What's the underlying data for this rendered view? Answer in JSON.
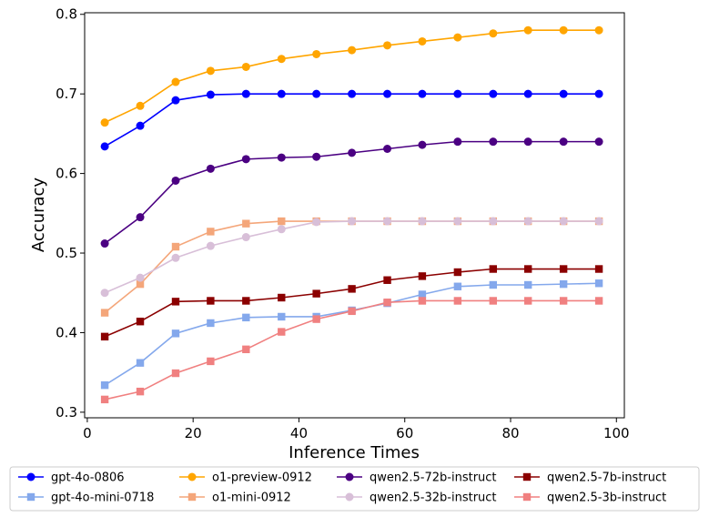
{
  "chart_data": {
    "type": "line",
    "title": "",
    "xlabel": "Inference Times",
    "ylabel": "Accuracy",
    "xlim": [
      -0.5,
      101.5
    ],
    "ylim": [
      0.293,
      0.802
    ],
    "xticks": [
      0,
      20,
      40,
      60,
      80,
      100
    ],
    "yticks": [
      0.3,
      0.4,
      0.5,
      0.6,
      0.7,
      0.8
    ],
    "grid": false,
    "legend_position": "bottom",
    "x": [
      3.3,
      10,
      16.7,
      23.3,
      30,
      36.7,
      43.3,
      50,
      56.7,
      63.3,
      70,
      76.7,
      83.3,
      90,
      96.7
    ],
    "series": [
      {
        "name": "gpt-4o-0806",
        "color": "#0000ff",
        "marker": "circle",
        "values": [
          0.634,
          0.66,
          0.692,
          0.699,
          0.7,
          0.7,
          0.7,
          0.7,
          0.7,
          0.7,
          0.7,
          0.7,
          0.7,
          0.7,
          0.7
        ]
      },
      {
        "name": "gpt-4o-mini-0718",
        "color": "#84a8ec",
        "marker": "square",
        "values": [
          0.334,
          0.362,
          0.399,
          0.412,
          0.419,
          0.42,
          0.42,
          0.428,
          0.437,
          0.448,
          0.458,
          0.46,
          0.46,
          0.461,
          0.462
        ]
      },
      {
        "name": "o1-preview-0912",
        "color": "#ffa500",
        "marker": "circle",
        "values": [
          0.664,
          0.685,
          0.715,
          0.729,
          0.734,
          0.744,
          0.75,
          0.755,
          0.761,
          0.766,
          0.771,
          0.776,
          0.78,
          0.78,
          0.78
        ]
      },
      {
        "name": "o1-mini-0912",
        "color": "#f4a67a",
        "marker": "square",
        "values": [
          0.425,
          0.461,
          0.508,
          0.527,
          0.537,
          0.54,
          0.54,
          0.54,
          0.54,
          0.54,
          0.54,
          0.54,
          0.54,
          0.54,
          0.54
        ]
      },
      {
        "name": "qwen2.5-72b-instruct",
        "color": "#4b0082",
        "marker": "circle",
        "values": [
          0.512,
          0.545,
          0.591,
          0.606,
          0.618,
          0.62,
          0.621,
          0.626,
          0.631,
          0.636,
          0.64,
          0.64,
          0.64,
          0.64,
          0.64
        ]
      },
      {
        "name": "qwen2.5-32b-instruct",
        "color": "#d8bfd8",
        "marker": "circle",
        "values": [
          0.45,
          0.469,
          0.494,
          0.509,
          0.52,
          0.53,
          0.539,
          0.54,
          0.54,
          0.54,
          0.54,
          0.54,
          0.54,
          0.54,
          0.54
        ]
      },
      {
        "name": "qwen2.5-7b-instruct",
        "color": "#8b0000",
        "marker": "square",
        "values": [
          0.395,
          0.414,
          0.439,
          0.44,
          0.44,
          0.444,
          0.449,
          0.455,
          0.466,
          0.471,
          0.476,
          0.48,
          0.48,
          0.48,
          0.48
        ]
      },
      {
        "name": "qwen2.5-3b-instruct",
        "color": "#f08080",
        "marker": "square",
        "values": [
          0.316,
          0.326,
          0.349,
          0.364,
          0.379,
          0.401,
          0.417,
          0.427,
          0.438,
          0.44,
          0.44,
          0.44,
          0.44,
          0.44,
          0.44
        ]
      }
    ],
    "legend_columns": [
      [
        "gpt-4o-0806",
        "gpt-4o-mini-0718"
      ],
      [
        "o1-preview-0912",
        "o1-mini-0912"
      ],
      [
        "qwen2.5-72b-instruct",
        "qwen2.5-32b-instruct"
      ],
      [
        "qwen2.5-7b-instruct",
        "qwen2.5-3b-instruct"
      ]
    ]
  }
}
